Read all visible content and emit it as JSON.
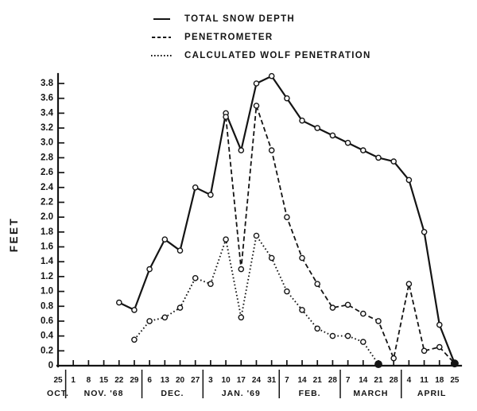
{
  "page": {
    "background": "#ffffff",
    "ink": "#141414"
  },
  "legend": {
    "items": [
      {
        "label": "TOTAL SNOW DEPTH",
        "style": "solid"
      },
      {
        "label": "PENETROMETER",
        "style": "dashed"
      },
      {
        "label": "CALCULATED WOLF PENETRATION",
        "style": "dotted"
      }
    ]
  },
  "chart_data": {
    "type": "line",
    "title": "",
    "xlabel": "",
    "ylabel": "FEET",
    "ylim": [
      0,
      3.8
    ],
    "ytick_step": 0.2,
    "grid": false,
    "legend_position": "top",
    "x_tick_labels": [
      "25",
      "1",
      "8",
      "15",
      "22",
      "29",
      "6",
      "13",
      "20",
      "27",
      "3",
      "10",
      "17",
      "24",
      "31",
      "7",
      "14",
      "21",
      "28",
      "7",
      "14",
      "21",
      "28",
      "4",
      "11",
      "18",
      "25"
    ],
    "month_groups": [
      {
        "label": "OCT.",
        "tick_count": 1
      },
      {
        "label": "NOV. '68",
        "tick_count": 5
      },
      {
        "label": "DEC.",
        "tick_count": 4
      },
      {
        "label": "JAN. '69",
        "tick_count": 5
      },
      {
        "label": "FEB.",
        "tick_count": 4
      },
      {
        "label": "MARCH",
        "tick_count": 4
      },
      {
        "label": "APRIL",
        "tick_count": 4
      }
    ],
    "series": [
      {
        "name": "TOTAL SNOW DEPTH",
        "style": "solid",
        "points": [
          [
            4,
            0.85
          ],
          [
            5,
            0.75
          ],
          [
            6,
            1.3
          ],
          [
            7,
            1.7
          ],
          [
            8,
            1.55
          ],
          [
            9,
            2.4
          ],
          [
            10,
            2.3
          ],
          [
            11,
            3.4
          ],
          [
            12,
            2.9
          ],
          [
            13,
            3.8
          ],
          [
            14,
            3.9
          ],
          [
            15,
            3.6
          ],
          [
            16,
            3.3
          ],
          [
            17,
            3.2
          ],
          [
            18,
            3.1
          ],
          [
            19,
            3.0
          ],
          [
            20,
            2.9
          ],
          [
            21,
            2.8
          ],
          [
            22,
            2.75
          ],
          [
            23,
            2.5
          ],
          [
            24,
            1.8
          ],
          [
            25,
            0.55
          ],
          [
            26,
            0.03
          ]
        ]
      },
      {
        "name": "PENETROMETER",
        "style": "dashed",
        "points": [
          [
            11,
            3.35
          ],
          [
            12,
            1.3
          ],
          [
            13,
            3.5
          ],
          [
            14,
            2.9
          ],
          [
            15,
            2.0
          ],
          [
            16,
            1.45
          ],
          [
            17,
            1.1
          ],
          [
            18,
            0.78
          ],
          [
            19,
            0.82
          ],
          [
            20,
            0.7
          ],
          [
            21,
            0.6
          ],
          [
            22,
            0.1
          ],
          [
            23,
            1.1
          ],
          [
            24,
            0.2
          ],
          [
            25,
            0.25
          ],
          [
            26,
            0.03
          ]
        ]
      },
      {
        "name": "CALCULATED WOLF PENETRATION",
        "style": "dotted",
        "points": [
          [
            5,
            0.35
          ],
          [
            6,
            0.6
          ],
          [
            7,
            0.65
          ],
          [
            8,
            0.78
          ],
          [
            9,
            1.18
          ],
          [
            10,
            1.1
          ],
          [
            11,
            1.7
          ],
          [
            12,
            0.65
          ],
          [
            13,
            1.75
          ],
          [
            14,
            1.45
          ],
          [
            15,
            1.0
          ],
          [
            16,
            0.75
          ],
          [
            17,
            0.5
          ],
          [
            18,
            0.4
          ],
          [
            19,
            0.4
          ],
          [
            20,
            0.32
          ],
          [
            21,
            0.02
          ]
        ]
      }
    ]
  }
}
